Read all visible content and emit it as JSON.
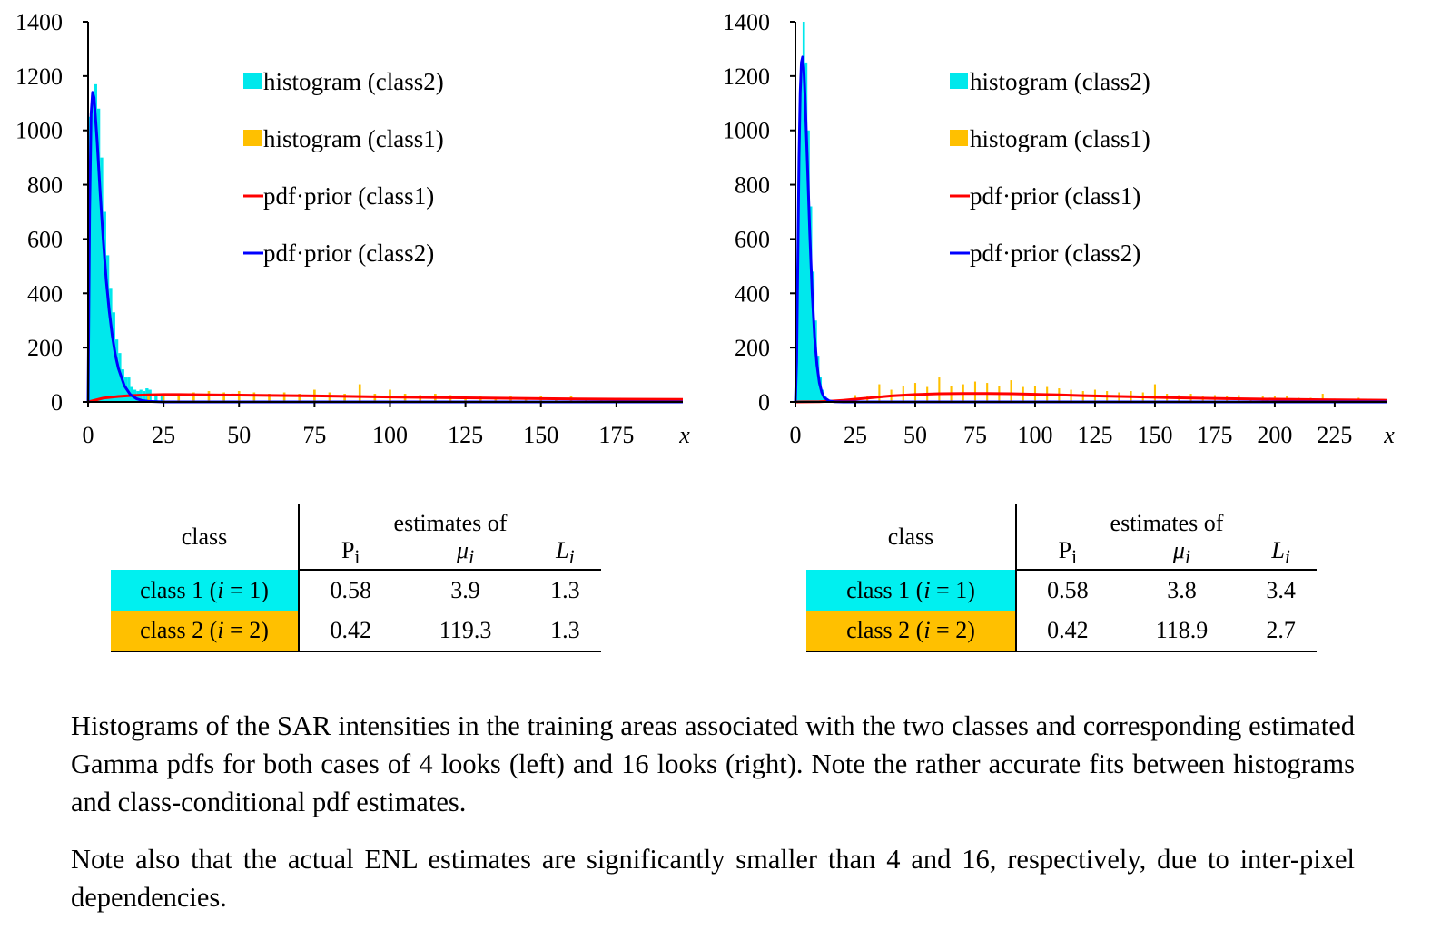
{
  "colors": {
    "hist_class2": "#00e8ec",
    "hist_class1": "#ffc000",
    "pdf_class1": "#ff0000",
    "pdf_class2": "#0000ff",
    "class1_cell": "#00f0f0",
    "class2_cell": "#ffc000"
  },
  "legend": [
    {
      "label": "histogram (class2)",
      "kind": "box",
      "color": "#00e8ec"
    },
    {
      "label": "histogram (class1)",
      "kind": "box",
      "color": "#ffc000"
    },
    {
      "label": "pdf·prior (class1)",
      "kind": "line",
      "color": "#ff0000"
    },
    {
      "label": "pdf·prior (class2)",
      "kind": "line",
      "color": "#0000ff"
    }
  ],
  "chart_data": [
    {
      "type": "line",
      "title": "",
      "xlabel": "x",
      "ylabel": "",
      "xlim": [
        0,
        197
      ],
      "ylim": [
        0,
        1400
      ],
      "xticks": [
        0,
        25,
        50,
        75,
        100,
        125,
        150,
        175
      ],
      "yticks": [
        0,
        200,
        400,
        600,
        800,
        1000,
        1200,
        1400
      ],
      "grid": false,
      "legend_position": "top-center",
      "series": [
        {
          "name": "histogram (class2)",
          "kind": "histogram",
          "x": [
            0.5,
            1.5,
            2.5,
            3.5,
            4.5,
            5.5,
            6.5,
            7.5,
            8.5,
            9.5,
            10.5,
            11.5,
            12.5,
            13.5,
            14.5,
            15.5,
            16.5,
            17.5,
            18.5,
            19.5,
            20.5,
            22.5,
            24.5
          ],
          "y": [
            1050,
            1130,
            1170,
            1080,
            900,
            700,
            540,
            420,
            330,
            230,
            180,
            120,
            90,
            90,
            55,
            45,
            40,
            45,
            40,
            50,
            45,
            30,
            20
          ]
        },
        {
          "name": "histogram (class1)",
          "kind": "histogram",
          "x": [
            5,
            10,
            15,
            20,
            25,
            30,
            35,
            40,
            45,
            50,
            55,
            60,
            65,
            70,
            75,
            80,
            85,
            90,
            95,
            100,
            105,
            110,
            115,
            120,
            125,
            130,
            135,
            140,
            145,
            150,
            155,
            160,
            165,
            170,
            175,
            180,
            185,
            190,
            195
          ],
          "y": [
            10,
            15,
            20,
            25,
            30,
            25,
            35,
            40,
            35,
            40,
            35,
            30,
            35,
            30,
            45,
            35,
            30,
            65,
            30,
            45,
            30,
            25,
            30,
            25,
            20,
            20,
            15,
            20,
            15,
            20,
            15,
            20,
            15,
            10,
            15,
            10,
            12,
            10,
            8
          ]
        },
        {
          "name": "pdf·prior (class1)",
          "kind": "curve",
          "x": [
            0,
            5,
            10,
            15,
            20,
            25,
            30,
            40,
            50,
            60,
            75,
            100,
            125,
            150,
            175,
            197
          ],
          "y": [
            0,
            14,
            20,
            24,
            26,
            27,
            27,
            26,
            25,
            24,
            22,
            18,
            15,
            12,
            10,
            9
          ]
        },
        {
          "name": "pdf·prior (class2)",
          "kind": "curve",
          "x": [
            0,
            0.5,
            1,
            1.5,
            2,
            3,
            4,
            5,
            6,
            7,
            8,
            9,
            10,
            12,
            14,
            16,
            18,
            20,
            25,
            30,
            197
          ],
          "y": [
            0,
            700,
            1060,
            1140,
            1120,
            960,
            770,
            600,
            450,
            335,
            245,
            175,
            125,
            60,
            27,
            12,
            5,
            2,
            0,
            0,
            0
          ]
        }
      ]
    },
    {
      "type": "line",
      "title": "",
      "xlabel": "x",
      "ylabel": "",
      "xlim": [
        0,
        247
      ],
      "ylim": [
        0,
        1400
      ],
      "xticks": [
        0,
        25,
        50,
        75,
        100,
        125,
        150,
        175,
        200,
        225
      ],
      "yticks": [
        0,
        200,
        400,
        600,
        800,
        1000,
        1200,
        1400
      ],
      "grid": false,
      "legend_position": "top-center",
      "series": [
        {
          "name": "histogram (class2)",
          "kind": "histogram",
          "x": [
            0.5,
            1.5,
            2.5,
            3.5,
            4.5,
            5.5,
            6.5,
            7.5,
            8.5,
            9.5,
            10.5,
            11.5,
            12.5,
            13.5
          ],
          "y": [
            80,
            400,
            900,
            1400,
            1250,
            1000,
            720,
            480,
            300,
            170,
            90,
            45,
            20,
            10
          ]
        },
        {
          "name": "histogram (class1)",
          "kind": "histogram",
          "x": [
            20,
            25,
            30,
            35,
            40,
            45,
            50,
            55,
            60,
            65,
            70,
            75,
            80,
            85,
            90,
            95,
            100,
            105,
            110,
            115,
            120,
            125,
            130,
            135,
            140,
            145,
            150,
            155,
            160,
            165,
            170,
            175,
            180,
            185,
            190,
            195,
            200,
            205,
            210,
            215,
            220,
            225,
            230,
            235,
            240,
            245
          ],
          "y": [
            10,
            25,
            20,
            65,
            45,
            60,
            70,
            55,
            90,
            60,
            65,
            75,
            70,
            60,
            80,
            55,
            60,
            55,
            50,
            45,
            40,
            45,
            40,
            35,
            40,
            35,
            65,
            30,
            25,
            30,
            20,
            25,
            20,
            25,
            15,
            20,
            20,
            20,
            15,
            15,
            30,
            12,
            10,
            15,
            10,
            8
          ]
        },
        {
          "name": "pdf·prior (class1)",
          "kind": "curve",
          "x": [
            0,
            10,
            15,
            20,
            25,
            30,
            40,
            50,
            60,
            70,
            80,
            90,
            100,
            110,
            120,
            140,
            160,
            180,
            200,
            220,
            247
          ],
          "y": [
            0,
            1,
            3,
            6,
            10,
            14,
            22,
            27,
            30,
            31,
            31,
            30,
            28,
            26,
            23,
            19,
            15,
            12,
            10,
            8,
            6
          ]
        },
        {
          "name": "pdf·prior (class2)",
          "kind": "curve",
          "x": [
            0,
            0.5,
            1,
            1.5,
            2,
            2.5,
            3,
            3.5,
            4,
            5,
            6,
            7,
            8,
            9,
            10,
            11,
            12,
            14,
            16,
            20,
            247
          ],
          "y": [
            0,
            150,
            520,
            900,
            1140,
            1250,
            1270,
            1230,
            1130,
            880,
            620,
            400,
            240,
            135,
            70,
            35,
            16,
            4,
            1,
            0,
            0
          ]
        }
      ]
    }
  ],
  "tables": [
    {
      "header_class": "class",
      "header_estimates": "estimates of",
      "symbols": [
        {
          "base": "P",
          "sub": "i"
        },
        {
          "base": "μ",
          "sub": "i"
        },
        {
          "base": "L",
          "sub": "i"
        }
      ],
      "rows": [
        {
          "prefix": "class 1 (",
          "var": "i",
          "suffix": " = 1)",
          "P": "0.58",
          "mu": "3.9",
          "L": "1.3",
          "color": "#00f0f0"
        },
        {
          "prefix": "class 2 (",
          "var": "i",
          "suffix": " = 2)",
          "P": "0.42",
          "mu": "119.3",
          "L": "1.3",
          "color": "#ffc000"
        }
      ]
    },
    {
      "header_class": "class",
      "header_estimates": "estimates of",
      "symbols": [
        {
          "base": "P",
          "sub": "i"
        },
        {
          "base": "μ",
          "sub": "i"
        },
        {
          "base": "L",
          "sub": "i"
        }
      ],
      "rows": [
        {
          "prefix": "class 1 (",
          "var": "i",
          "suffix": " = 1)",
          "P": "0.58",
          "mu": "3.8",
          "L": "3.4",
          "color": "#00f0f0"
        },
        {
          "prefix": "class 2 (",
          "var": "i",
          "suffix": " = 2)",
          "P": "0.42",
          "mu": "118.9",
          "L": "2.7",
          "color": "#ffc000"
        }
      ]
    }
  ],
  "captions": [
    "Histograms of the SAR intensities in the training areas associated with the two classes and corresponding estimated Gamma pdfs for both cases of 4 looks (left) and 16 looks (right). Note the rather accurate fits between histograms and class-conditional pdf estimates.",
    "Note also that the actual ENL estimates are significantly smaller than 4 and 16, respectively, due to inter-pixel dependencies."
  ]
}
